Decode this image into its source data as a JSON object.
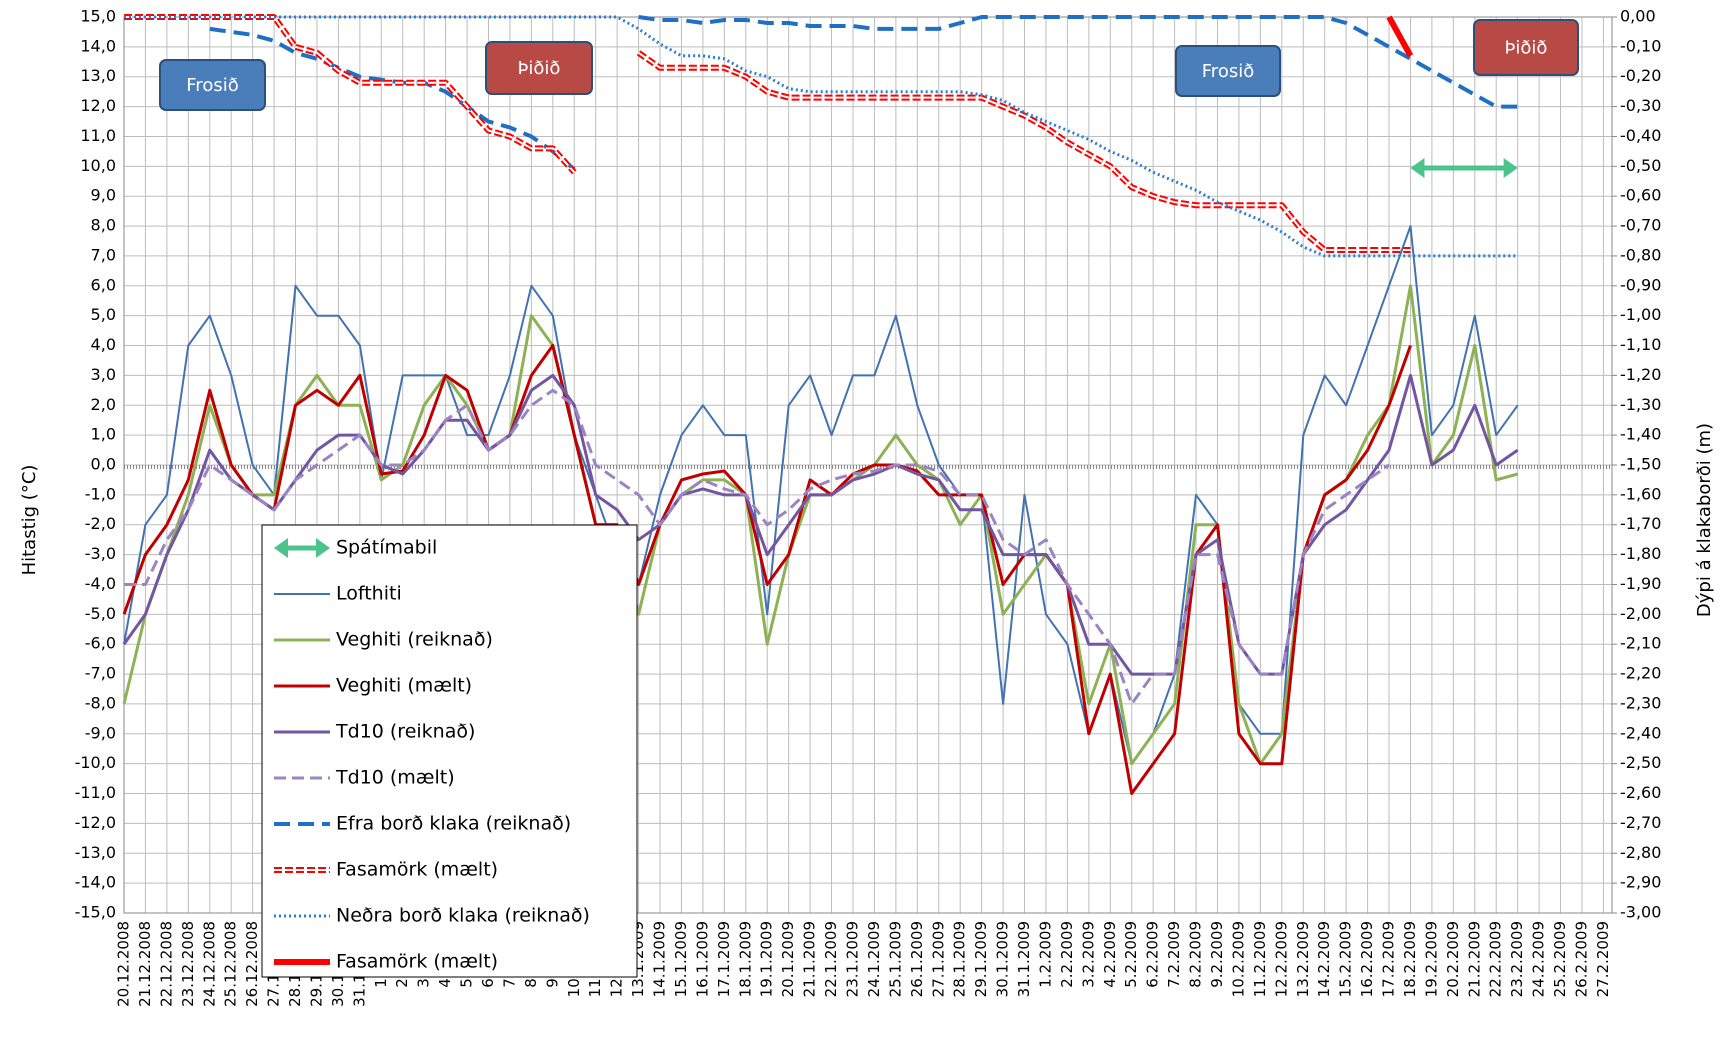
{
  "chart_data": {
    "type": "line",
    "y_label": "Hitastig (°C)",
    "y2_label": "Dýpi á klakaborði  (m)",
    "categories": [
      "20.12.2008",
      "21.12.2008",
      "22.12.2008",
      "23.12.2008",
      "24.12.2008",
      "25.12.2008",
      "26.12.2008",
      "27.12.2008",
      "28.12.2008",
      "29.12.2008",
      "30.12.2008",
      "31.12.2008",
      "1.1.2009",
      "2.1.2009",
      "3.1.2009",
      "4.1.2009",
      "5.1.2009",
      "6.1.2009",
      "7.1.2009",
      "8.1.2009",
      "9.1.2009",
      "10.1.2009",
      "11.1.2009",
      "12.1.2009",
      "13.1.2009",
      "14.1.2009",
      "15.1.2009",
      "16.1.2009",
      "17.1.2009",
      "18.1.2009",
      "19.1.2009",
      "20.1.2009",
      "21.1.2009",
      "22.1.2009",
      "23.1.2009",
      "24.1.2009",
      "25.1.2009",
      "26.1.2009",
      "27.1.2009",
      "28.1.2009",
      "29.1.2009",
      "30.1.2009",
      "31.1.2009",
      "1.2.2009",
      "2.2.2009",
      "3.2.2009",
      "4.2.2009",
      "5.2.2009",
      "6.2.2009",
      "7.2.2009",
      "8.2.2009",
      "9.2.2009",
      "10.2.2009",
      "11.2.2009",
      "12.2.2009",
      "13.2.2009",
      "14.2.2009",
      "15.2.2009",
      "16.2.2009",
      "17.2.2009",
      "18.2.2009",
      "19.2.2009",
      "20.2.2009",
      "21.2.2009",
      "22.2.2009",
      "23.2.2009",
      "24.2.2009",
      "25.2.2009",
      "26.2.2009",
      "27.2.2009"
    ],
    "ylim": [
      -15,
      15
    ],
    "yticks": [
      {
        "value": 15,
        "label": "15,0"
      },
      {
        "value": 14,
        "label": "14,0"
      },
      {
        "value": 13,
        "label": "13,0"
      },
      {
        "value": 12,
        "label": "12,0"
      },
      {
        "value": 11,
        "label": "11,0"
      },
      {
        "value": 10,
        "label": "10,0"
      },
      {
        "value": 9,
        "label": "9,0"
      },
      {
        "value": 8,
        "label": "8,0"
      },
      {
        "value": 7,
        "label": "7,0"
      },
      {
        "value": 6,
        "label": "6,0"
      },
      {
        "value": 5,
        "label": "5,0"
      },
      {
        "value": 4,
        "label": "4,0"
      },
      {
        "value": 3,
        "label": "3,0"
      },
      {
        "value": 2,
        "label": "2,0"
      },
      {
        "value": 1,
        "label": "1,0"
      },
      {
        "value": 0,
        "label": "0,0"
      },
      {
        "value": -1,
        "label": "-1,0"
      },
      {
        "value": -2,
        "label": "-2,0"
      },
      {
        "value": -3,
        "label": "-3,0"
      },
      {
        "value": -4,
        "label": "-4,0"
      },
      {
        "value": -5,
        "label": "-5,0"
      },
      {
        "value": -6,
        "label": "-6,0"
      },
      {
        "value": -7,
        "label": "-7,0"
      },
      {
        "value": -8,
        "label": "-8,0"
      },
      {
        "value": -9,
        "label": "-9,0"
      },
      {
        "value": -10,
        "label": "-10,0"
      },
      {
        "value": -11,
        "label": "-11,0"
      },
      {
        "value": -12,
        "label": "-12,0"
      },
      {
        "value": -13,
        "label": "-13,0"
      },
      {
        "value": -14,
        "label": "-14,0"
      },
      {
        "value": -15,
        "label": "-15,0"
      }
    ],
    "y2lim": [
      -3,
      0
    ],
    "y2ticks": [
      {
        "value": 0,
        "label": "0,00"
      },
      {
        "value": -0.1,
        "label": "-0,10"
      },
      {
        "value": -0.2,
        "label": "-0,20"
      },
      {
        "value": -0.3,
        "label": "-0,30"
      },
      {
        "value": -0.4,
        "label": "-0,40"
      },
      {
        "value": -0.5,
        "label": "-0,50"
      },
      {
        "value": -0.6,
        "label": "-0,60"
      },
      {
        "value": -0.7,
        "label": "-0,70"
      },
      {
        "value": -0.8,
        "label": "-0,80"
      },
      {
        "value": -0.9,
        "label": "-0,90"
      },
      {
        "value": -1,
        "label": "-1,00"
      },
      {
        "value": -1.1,
        "label": "-1,10"
      },
      {
        "value": -1.2,
        "label": "-1,20"
      },
      {
        "value": -1.3,
        "label": "-1,30"
      },
      {
        "value": -1.4,
        "label": "-1,40"
      },
      {
        "value": -1.5,
        "label": "-1,50"
      },
      {
        "value": -1.6,
        "label": "-1,60"
      },
      {
        "value": -1.7,
        "label": "-1,70"
      },
      {
        "value": -1.8,
        "label": "-1,80"
      },
      {
        "value": -1.9,
        "label": "-1,90"
      },
      {
        "value": -2,
        "label": "-2,00"
      },
      {
        "value": -2.1,
        "label": "-2,10"
      },
      {
        "value": -2.2,
        "label": "-2,20"
      },
      {
        "value": -2.3,
        "label": "-2,30"
      },
      {
        "value": -2.4,
        "label": "-2,40"
      },
      {
        "value": -2.5,
        "label": "-2,50"
      },
      {
        "value": -2.6,
        "label": "-2,60"
      },
      {
        "value": -2.7,
        "label": "-2,70"
      },
      {
        "value": -2.8,
        "label": "-2,80"
      },
      {
        "value": -2.9,
        "label": "-2,90"
      },
      {
        "value": -3,
        "label": "-3,00"
      }
    ],
    "grid": true,
    "forecast_period": {
      "label": "Spátímabil",
      "start": "18.2.2009",
      "end": "23.2.2009",
      "color": "#4cc38a"
    },
    "annotations": [
      {
        "text": "Frosið",
        "color": "#4a7ebb"
      },
      {
        "text": "Þiðið",
        "color": "#b84a46"
      },
      {
        "text": "Frosið",
        "color": "#4a7ebb"
      },
      {
        "text": "Þiðið",
        "color": "#b84a46"
      }
    ],
    "series": [
      {
        "name": "Lofthiti",
        "color": "#4372b0",
        "style": "solid",
        "width": 2,
        "values": [
          -6,
          -2,
          -1,
          4,
          5,
          3,
          0,
          -1,
          6,
          5,
          5,
          4,
          -0.5,
          3,
          3,
          3,
          1,
          1,
          3,
          6,
          5,
          1,
          -1,
          -3,
          -4,
          -1,
          1,
          2,
          1,
          1,
          -5,
          2,
          3,
          1,
          3,
          3,
          5,
          2,
          0,
          -1,
          -1,
          -8,
          -1,
          -5,
          -6,
          -9,
          -7,
          -10,
          -9,
          -7,
          -1,
          -2,
          -8,
          -9,
          -9,
          1,
          3,
          2,
          4,
          6,
          8,
          1,
          2,
          5,
          1,
          2,
          null,
          null,
          null,
          null
        ]
      },
      {
        "name": "Veghiti (reiknað)",
        "color": "#8db255",
        "style": "solid",
        "width": 3,
        "values": [
          -8,
          -5,
          -3,
          -1,
          2,
          0,
          -1,
          -1,
          2,
          3,
          2,
          2,
          -0.5,
          0,
          2,
          3,
          2,
          0.5,
          1,
          5,
          4,
          1,
          -2,
          -2,
          -5,
          -2,
          -1,
          -0.5,
          -0.5,
          -1,
          -6,
          -3,
          -1,
          -1,
          -0.5,
          0,
          1,
          0,
          -0.5,
          -2,
          -1,
          -5,
          -4,
          -3,
          -4,
          -8,
          -6,
          -10,
          -9,
          -8,
          -2,
          -2,
          -8,
          -10,
          -9,
          -3,
          -1,
          -0.5,
          1,
          2,
          6,
          0,
          1,
          4,
          -0.5,
          -0.3,
          null,
          null,
          null,
          null
        ]
      },
      {
        "name": "Veghiti (mælt)",
        "color": "#c00000",
        "style": "solid",
        "width": 3,
        "values": [
          -5,
          -3,
          -2,
          -0.5,
          2.5,
          0,
          -1,
          -1.5,
          2,
          2.5,
          2,
          3,
          -0.3,
          -0.2,
          1,
          3,
          2.5,
          0.5,
          1,
          3,
          4,
          1,
          -2,
          -2,
          -4,
          -2,
          -0.5,
          -0.3,
          -0.2,
          -1,
          -4,
          -3,
          -0.5,
          -1,
          -0.3,
          0,
          0,
          -0.2,
          -1,
          -1,
          -1,
          -4,
          -3,
          -3,
          -4,
          -9,
          -7,
          -11,
          -10,
          -9,
          -3,
          -2,
          -9,
          -10,
          -10,
          -3,
          -1,
          -0.5,
          0.5,
          2,
          4,
          null,
          null,
          null,
          null,
          null,
          null,
          null,
          null,
          null
        ]
      },
      {
        "name": "Td10 (reiknað)",
        "color": "#7356a2",
        "style": "solid",
        "width": 3,
        "values": [
          -6,
          -5,
          -3,
          -1.5,
          0.5,
          -0.5,
          -1,
          -1.5,
          -0.5,
          0.5,
          1,
          1,
          0,
          -0.3,
          0.5,
          1.5,
          1.5,
          0.5,
          1,
          2.5,
          3,
          2,
          -1,
          -1.5,
          -2.5,
          -2,
          -1,
          -0.8,
          -1,
          -1,
          -3,
          -2,
          -1,
          -1,
          -0.5,
          -0.3,
          0,
          -0.3,
          -0.5,
          -1.5,
          -1.5,
          -3,
          -3,
          -3,
          -4,
          -6,
          -6,
          -7,
          -7,
          -7,
          -3,
          -2.5,
          -6,
          -7,
          -7,
          -3,
          -2,
          -1.5,
          -0.5,
          0.5,
          3,
          0,
          0.5,
          2,
          0,
          0.5,
          null,
          null,
          null,
          null
        ]
      },
      {
        "name": "Td10 (mælt)",
        "color": "#9c83c4",
        "style": "dashed",
        "width": 3,
        "values": [
          -4,
          -4,
          -2.5,
          -1.5,
          0,
          -0.5,
          -1,
          -1.5,
          -0.5,
          0,
          0.5,
          1,
          0,
          0,
          0.5,
          1.5,
          2,
          0.5,
          1,
          2,
          2.5,
          2,
          0,
          -0.5,
          -1,
          -2,
          -1,
          -0.5,
          -0.8,
          -1,
          -2,
          -1.5,
          -0.8,
          -0.5,
          -0.3,
          -0.2,
          0,
          0,
          -0.2,
          -1,
          -1,
          -2.5,
          -3,
          -2.5,
          -4,
          -5,
          -6,
          -8,
          -7,
          -7,
          -3,
          -3,
          -6,
          -7,
          -7,
          -3,
          -1.5,
          -1,
          -0.5,
          0,
          null,
          null,
          null,
          null,
          null,
          null,
          null,
          null,
          null,
          null
        ]
      },
      {
        "name": "Efra borð klaka (reiknað)",
        "color": "#1f6fc5",
        "style": "dashed",
        "width": 4,
        "axis": "y2",
        "values": [
          null,
          null,
          null,
          null,
          -0.04,
          -0.05,
          -0.06,
          -0.08,
          -0.12,
          -0.14,
          -0.17,
          -0.2,
          -0.21,
          -0.22,
          -0.22,
          -0.25,
          -0.3,
          -0.35,
          -0.37,
          -0.4,
          -0.45,
          -0.51,
          null,
          null,
          0,
          -0.01,
          -0.01,
          -0.02,
          -0.01,
          -0.01,
          -0.02,
          -0.02,
          -0.03,
          -0.03,
          -0.03,
          -0.04,
          -0.04,
          -0.04,
          -0.04,
          -0.02,
          0,
          0,
          0,
          0,
          0,
          0,
          0,
          0,
          0,
          0,
          0,
          0,
          0,
          0,
          0,
          0,
          0,
          -0.02,
          -0.06,
          -0.1,
          -0.14,
          -0.18,
          -0.22,
          -0.26,
          -0.3,
          -0.3,
          null,
          null,
          null,
          null
        ]
      },
      {
        "name": "Fasamörk (mælt)",
        "color": "#ff0000",
        "style": "double-dashed",
        "width": 6,
        "axis": "y2",
        "values": [
          0,
          0,
          0,
          0,
          0,
          0,
          0,
          0,
          -0.1,
          -0.12,
          -0.18,
          -0.22,
          -0.22,
          -0.22,
          -0.22,
          -0.22,
          -0.3,
          -0.38,
          -0.4,
          -0.44,
          -0.44,
          -0.52,
          null,
          null,
          -0.12,
          -0.17,
          -0.17,
          -0.17,
          -0.17,
          -0.2,
          -0.25,
          -0.27,
          -0.27,
          -0.27,
          -0.27,
          -0.27,
          -0.27,
          -0.27,
          -0.27,
          -0.27,
          -0.27,
          -0.3,
          -0.33,
          -0.37,
          -0.42,
          -0.46,
          -0.5,
          -0.57,
          -0.6,
          -0.62,
          -0.63,
          -0.63,
          -0.63,
          -0.63,
          -0.63,
          -0.72,
          -0.78,
          -0.78,
          -0.78,
          -0.78,
          -0.78,
          null,
          null,
          null,
          null,
          null,
          null,
          null,
          null,
          null
        ]
      },
      {
        "name": "Neðra borð klaka (reiknað)",
        "color": "#2a7fd0",
        "style": "dotted",
        "width": 3,
        "axis": "y2",
        "values": [
          0,
          0,
          0,
          0,
          0,
          0,
          0,
          0,
          0,
          0,
          0,
          0,
          0,
          0,
          0,
          0,
          0,
          0,
          0,
          0,
          0,
          0,
          0,
          0,
          -0.04,
          -0.09,
          -0.13,
          -0.13,
          -0.14,
          -0.18,
          -0.2,
          -0.24,
          -0.25,
          -0.25,
          -0.25,
          -0.25,
          -0.25,
          -0.25,
          -0.25,
          -0.25,
          -0.26,
          -0.28,
          -0.32,
          -0.35,
          -0.38,
          -0.41,
          -0.45,
          -0.48,
          -0.52,
          -0.55,
          -0.58,
          -0.62,
          -0.65,
          -0.68,
          -0.72,
          -0.77,
          -0.8,
          -0.8,
          -0.8,
          -0.8,
          -0.8,
          -0.8,
          -0.8,
          -0.8,
          -0.8,
          -0.8,
          null,
          null,
          null,
          null
        ]
      },
      {
        "name": "Fasamörk (mælt)",
        "color": "#ff0000",
        "style": "solid",
        "width": 6,
        "axis": "y2",
        "values": [
          null,
          null,
          null,
          null,
          null,
          null,
          null,
          null,
          null,
          null,
          null,
          null,
          null,
          null,
          null,
          null,
          null,
          null,
          null,
          null,
          null,
          null,
          null,
          null,
          null,
          null,
          null,
          null,
          null,
          null,
          null,
          null,
          null,
          null,
          null,
          null,
          null,
          null,
          null,
          null,
          null,
          null,
          null,
          null,
          null,
          null,
          null,
          null,
          null,
          null,
          null,
          null,
          null,
          null,
          null,
          null,
          null,
          null,
          null,
          0,
          -0.13,
          null,
          null,
          null,
          null,
          null,
          null,
          null,
          null,
          null
        ]
      }
    ]
  }
}
